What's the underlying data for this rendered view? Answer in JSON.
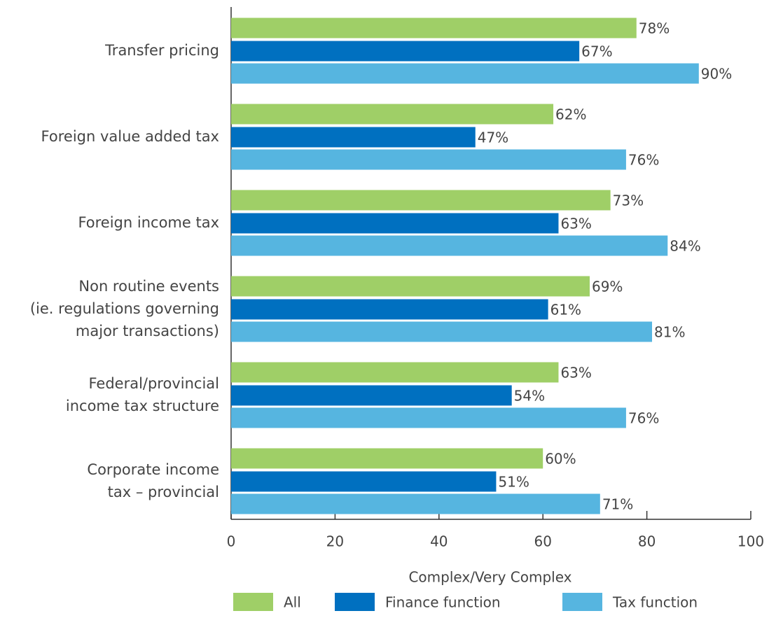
{
  "chart_data": {
    "type": "hbar",
    "categories": [
      [
        "Transfer pricing"
      ],
      [
        "Foreign value added tax"
      ],
      [
        "Foreign income tax"
      ],
      [
        "Non routine events",
        "(ie. regulations governing",
        "major transactions)"
      ],
      [
        "Federal/provincial",
        "income tax structure"
      ],
      [
        "Corporate income",
        "tax – provincial"
      ]
    ],
    "series": [
      {
        "name": "All",
        "color": "#9fcf67",
        "values": [
          78,
          62,
          73,
          69,
          63,
          60
        ],
        "value_labels": [
          "78%",
          "62%",
          "73%",
          "69%",
          "63%",
          "60%"
        ]
      },
      {
        "name": "Finance function",
        "color": "#0070c0",
        "values": [
          67,
          47,
          63,
          61,
          54,
          51
        ],
        "value_labels": [
          "67%",
          "47%",
          "63%",
          "61%",
          "54%",
          "51%"
        ]
      },
      {
        "name": "Tax function",
        "color": "#56b5e0",
        "values": [
          90,
          76,
          84,
          81,
          76,
          71
        ],
        "value_labels": [
          "90%",
          "76%",
          "84%",
          "81%",
          "76%",
          "71%"
        ]
      }
    ],
    "xlabel": "Complex/Very Complex",
    "xlim": [
      0,
      100
    ],
    "xticks": [
      0,
      20,
      40,
      60,
      80,
      100
    ],
    "legend": "bottom"
  }
}
